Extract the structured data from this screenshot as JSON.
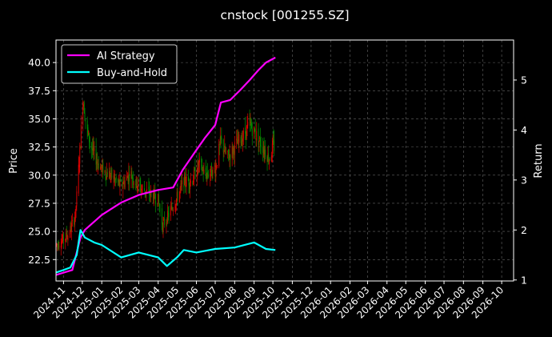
{
  "chart_data": {
    "type": "line",
    "title": "cnstock [001255.SZ]",
    "ylabel_left": "Price",
    "ylabel_right": "Return",
    "grid": true,
    "legend_placement": "top-left",
    "x_tick_labels": [
      "2024-11",
      "2024-12",
      "2025-01",
      "2025-02",
      "2025-03",
      "2025-04",
      "2025-05",
      "2025-06",
      "2025-07",
      "2025-08",
      "2025-09",
      "2025-10",
      "2025-11",
      "2025-12",
      "2026-01",
      "2026-02",
      "2026-03",
      "2026-04",
      "2026-05",
      "2026-06",
      "2026-07",
      "2026-08",
      "2026-09",
      "2026-10"
    ],
    "x_range": [
      "2024-10-20",
      "2026-10-20"
    ],
    "price_axis": {
      "ylim": [
        20.6,
        42.0
      ],
      "ticks": [
        "22.5",
        "25.0",
        "27.5",
        "30.0",
        "32.5",
        "35.0",
        "37.5",
        "40.0"
      ]
    },
    "return_axis": {
      "ylim": [
        0.98,
        5.8
      ],
      "ticks": [
        "1",
        "2",
        "3",
        "4",
        "5"
      ]
    },
    "candles_note": "daily OHLC candlesticks, red = up, green = down",
    "price_anchors": [
      [
        "2024-10-20",
        23.8
      ],
      [
        "2024-11-01",
        24.3
      ],
      [
        "2024-11-10",
        24.8
      ],
      [
        "2024-11-20",
        26.5
      ],
      [
        "2024-11-28",
        33.0
      ],
      [
        "2024-12-02",
        37.0
      ],
      [
        "2024-12-08",
        34.0
      ],
      [
        "2024-12-18",
        32.0
      ],
      [
        "2025-01-01",
        30.5
      ],
      [
        "2025-01-15",
        30.0
      ],
      [
        "2025-02-01",
        29.0
      ],
      [
        "2025-02-15",
        30.2
      ],
      [
        "2025-03-01",
        29.0
      ],
      [
        "2025-03-15",
        28.5
      ],
      [
        "2025-04-01",
        27.8
      ],
      [
        "2025-04-08",
        25.5
      ],
      [
        "2025-04-18",
        26.5
      ],
      [
        "2025-05-01",
        28.0
      ],
      [
        "2025-05-12",
        29.5
      ],
      [
        "2025-05-25",
        29.5
      ],
      [
        "2025-06-05",
        31.0
      ],
      [
        "2025-06-15",
        30.0
      ],
      [
        "2025-07-01",
        30.5
      ],
      [
        "2025-07-10",
        33.0
      ],
      [
        "2025-07-20",
        31.5
      ],
      [
        "2025-08-01",
        32.5
      ],
      [
        "2025-08-15",
        33.5
      ],
      [
        "2025-08-25",
        34.5
      ],
      [
        "2025-09-05",
        33.5
      ],
      [
        "2025-09-15",
        32.5
      ],
      [
        "2025-09-25",
        31.5
      ],
      [
        "2025-10-01",
        32.5
      ],
      [
        "2025-10-05",
        32.5
      ]
    ],
    "series": [
      {
        "name": "AI Strategy",
        "color": "#ff00ff",
        "points": [
          [
            "2024-10-20",
            1.1
          ],
          [
            "2024-11-15",
            1.2
          ],
          [
            "2024-11-28",
            1.85
          ],
          [
            "2024-12-05",
            2.0
          ],
          [
            "2025-01-01",
            2.3
          ],
          [
            "2025-02-01",
            2.55
          ],
          [
            "2025-03-01",
            2.7
          ],
          [
            "2025-04-01",
            2.8
          ],
          [
            "2025-04-25",
            2.85
          ],
          [
            "2025-05-10",
            3.2
          ],
          [
            "2025-06-01",
            3.6
          ],
          [
            "2025-06-15",
            3.85
          ],
          [
            "2025-07-01",
            4.1
          ],
          [
            "2025-07-10",
            4.55
          ],
          [
            "2025-07-25",
            4.6
          ],
          [
            "2025-08-10",
            4.8
          ],
          [
            "2025-08-25",
            5.0
          ],
          [
            "2025-09-08",
            5.2
          ],
          [
            "2025-09-20",
            5.35
          ],
          [
            "2025-10-05",
            5.45
          ]
        ]
      },
      {
        "name": "Buy-and-Hold",
        "color": "#00ffff",
        "points": [
          [
            "2024-10-20",
            1.15
          ],
          [
            "2024-11-01",
            1.2
          ],
          [
            "2024-11-12",
            1.25
          ],
          [
            "2024-11-22",
            1.5
          ],
          [
            "2024-11-28",
            2.0
          ],
          [
            "2024-12-05",
            1.85
          ],
          [
            "2024-12-20",
            1.75
          ],
          [
            "2025-01-01",
            1.7
          ],
          [
            "2025-02-01",
            1.45
          ],
          [
            "2025-03-01",
            1.55
          ],
          [
            "2025-04-01",
            1.45
          ],
          [
            "2025-04-15",
            1.28
          ],
          [
            "2025-05-01",
            1.45
          ],
          [
            "2025-05-12",
            1.6
          ],
          [
            "2025-06-01",
            1.55
          ],
          [
            "2025-07-01",
            1.62
          ],
          [
            "2025-08-01",
            1.65
          ],
          [
            "2025-09-01",
            1.75
          ],
          [
            "2025-09-20",
            1.62
          ],
          [
            "2025-10-05",
            1.6
          ]
        ]
      }
    ]
  }
}
